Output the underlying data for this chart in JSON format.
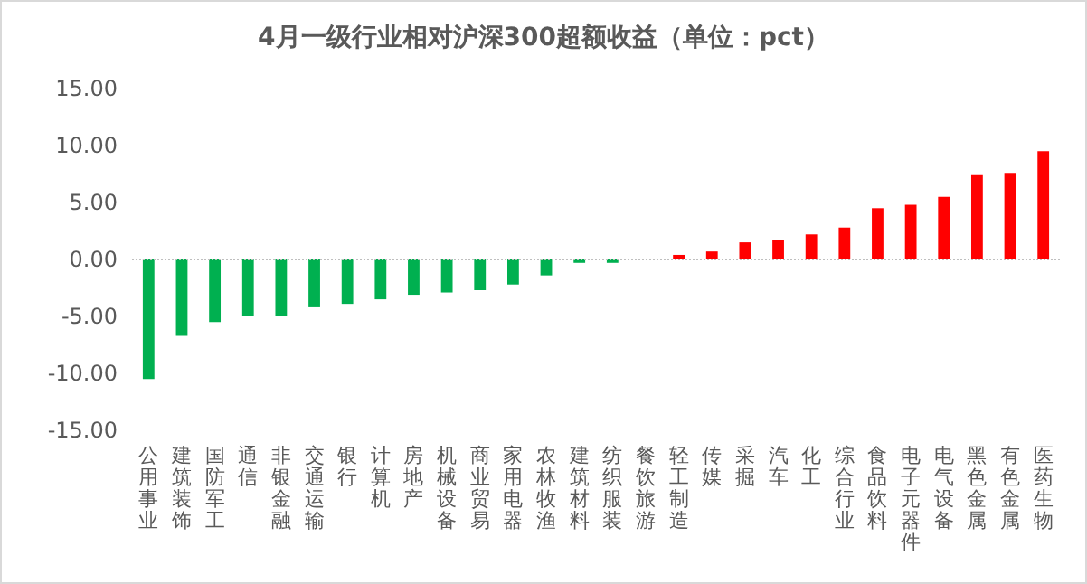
{
  "chart_data": {
    "type": "bar",
    "title": "4月一级行业相对沪深300超额收益（单位：pct）",
    "categories": [
      "公用事业",
      "建筑装饰",
      "国防军工",
      "通信",
      "非银金融",
      "交通运输",
      "银行",
      "计算机",
      "房地产",
      "机械设备",
      "商业贸易",
      "家用电器",
      "农林牧渔",
      "建筑材料",
      "纺织服装",
      "餐饮旅游",
      "轻工制造",
      "传媒",
      "采掘",
      "汽车",
      "化工",
      "综合行业",
      "食品饮料",
      "电子元器件",
      "电气设备",
      "黑色金属",
      "有色金属",
      "医药生物"
    ],
    "values": [
      -10.5,
      -6.7,
      -5.5,
      -5,
      -5,
      -4.2,
      -3.9,
      -3.5,
      -3.1,
      -2.9,
      -2.7,
      -2.2,
      -1.4,
      -0.3,
      -0.3,
      0,
      0.4,
      0.7,
      1.5,
      1.7,
      2.2,
      2.8,
      4.5,
      4.8,
      5.5,
      7.4,
      7.6,
      9.5
    ],
    "colors": [
      "#00b050",
      "#00b050",
      "#00b050",
      "#00b050",
      "#00b050",
      "#00b050",
      "#00b050",
      "#00b050",
      "#00b050",
      "#00b050",
      "#00b050",
      "#00b050",
      "#00b050",
      "#00b050",
      "#00b050",
      "#00b050",
      "#ff0000",
      "#ff0000",
      "#ff0000",
      "#ff0000",
      "#ff0000",
      "#ff0000",
      "#ff0000",
      "#ff0000",
      "#ff0000",
      "#ff0000",
      "#ff0000",
      "#ff0000"
    ],
    "ylim": [
      -15,
      15
    ],
    "yticks": [
      {
        "value": -15,
        "label": "-15.00"
      },
      {
        "value": -10,
        "label": "-10.00"
      },
      {
        "value": -5,
        "label": "-5.00"
      },
      {
        "value": 0,
        "label": "0.00"
      },
      {
        "value": 5,
        "label": "5.00"
      },
      {
        "value": 10,
        "label": "10.00"
      },
      {
        "value": 15,
        "label": "15.00"
      }
    ],
    "grid": false,
    "ref_lines": [
      {
        "axis": "y",
        "value": 0,
        "color": "#bfbfbf",
        "line_style": "dotted"
      }
    ]
  }
}
